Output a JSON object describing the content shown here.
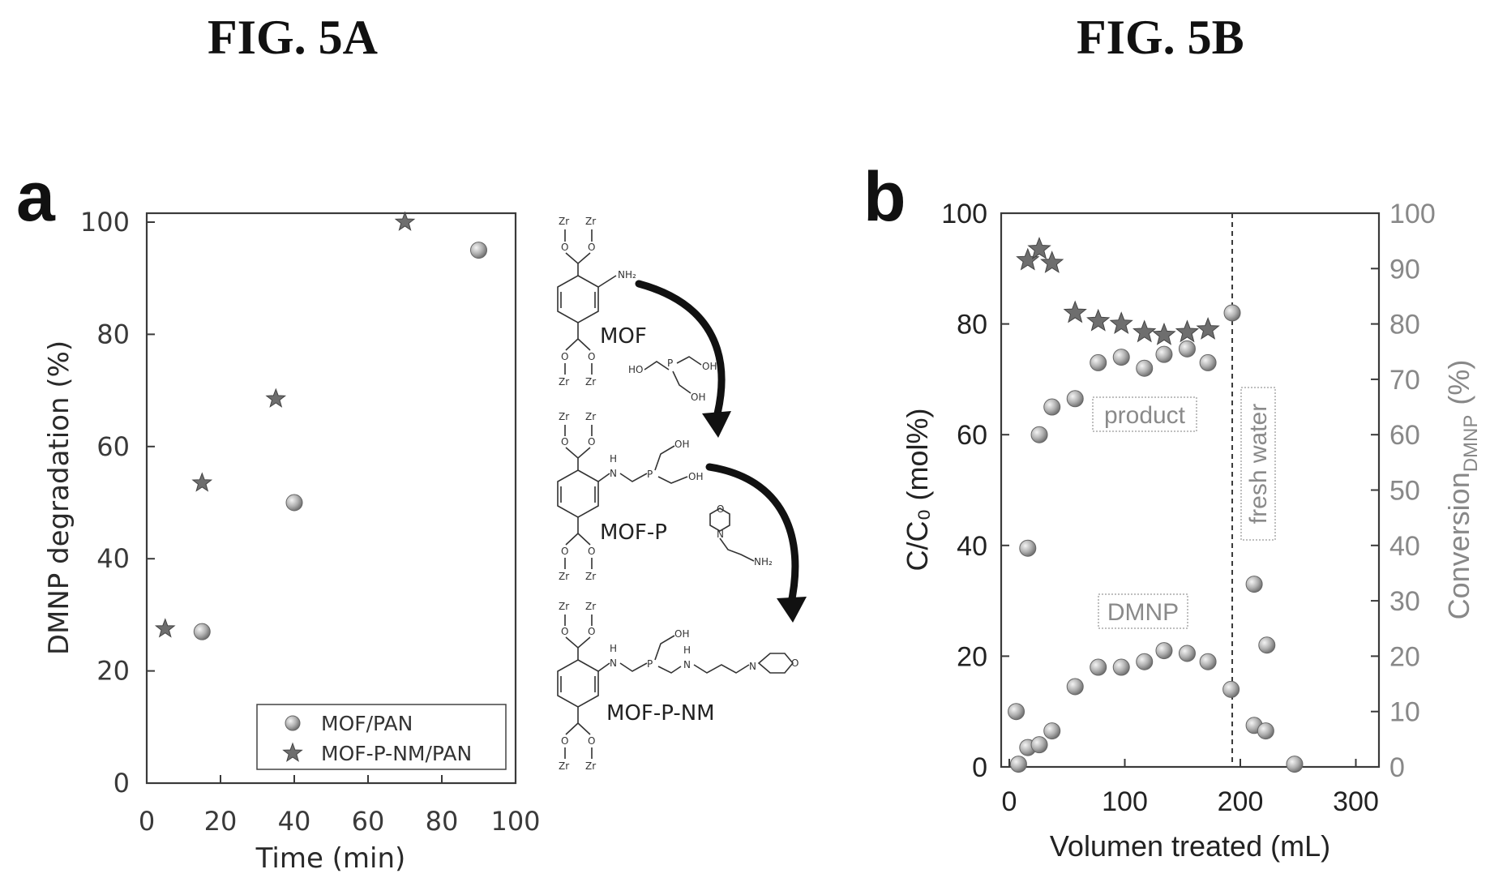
{
  "figure_titles": {
    "a": "FIG. 5A",
    "b": "FIG. 5B"
  },
  "panel_letters": {
    "a": "a",
    "b": "b"
  },
  "colors": {
    "circle_fill": "#a9a9a9",
    "star_fill": "#6e6e6e",
    "annotation": "#8a8a8a"
  },
  "chart_data": [
    {
      "type": "scatter",
      "xlabel": "Time (min)",
      "ylabel": "DMNP degradation (%)",
      "xlim": [
        0,
        100
      ],
      "ylim": [
        0,
        100
      ],
      "xticks": [
        "0",
        "20",
        "40",
        "60",
        "80",
        "100"
      ],
      "yticks": [
        "0",
        "20",
        "40",
        "60",
        "80",
        "100"
      ],
      "legend_position": "bottom-right",
      "series": [
        {
          "name": "MOF/PAN",
          "marker": "circle",
          "x": [
            15,
            40,
            90
          ],
          "y": [
            27,
            50,
            95
          ]
        },
        {
          "name": "MOF-P-NM/PAN",
          "marker": "star",
          "x": [
            5,
            15,
            35,
            70
          ],
          "y": [
            27.5,
            53.5,
            68.5,
            100
          ]
        }
      ],
      "scheme_labels": [
        "MOF",
        "MOF-P",
        "MOF-P-NM"
      ],
      "scheme_atoms": [
        "Zr",
        "O",
        "NH₂",
        "H",
        "N",
        "P",
        "OH",
        "HO",
        "NH₂"
      ]
    },
    {
      "type": "scatter",
      "xlabel": "Volumen treated (mL)",
      "ylabel": "C/C₀ (mol%)",
      "ylabel_right": "Conversion",
      "ylabel_right_sub": "DMNP",
      "ylabel_right_unit": "(%)",
      "xlim": [
        0,
        320
      ],
      "ylim": [
        0,
        100
      ],
      "ylim_right": [
        0,
        100
      ],
      "xticks": [
        "0",
        "100",
        "200",
        "300"
      ],
      "yticks": [
        "0",
        "20",
        "40",
        "60",
        "80",
        "100"
      ],
      "yticks_right": [
        "0",
        "10",
        "20",
        "30",
        "40",
        "50",
        "60",
        "70",
        "80",
        "90",
        "100"
      ],
      "vline_x": 193,
      "annotations": [
        "product",
        "DMNP",
        "fresh water"
      ],
      "series": [
        {
          "marker": "circle",
          "role": "product",
          "x": [
            16,
            26,
            37,
            57,
            77,
            97,
            117,
            134,
            154,
            172,
            212,
            223,
            247
          ],
          "y": [
            39.5,
            60,
            65,
            66.5,
            73,
            74,
            72,
            74.5,
            75.5,
            73,
            33,
            22,
            0.5
          ]
        },
        {
          "marker": "circle",
          "role": "DMNP",
          "x": [
            6,
            8,
            16,
            26,
            37,
            57,
            77,
            97,
            117,
            134,
            154,
            172,
            192,
            212,
            222
          ],
          "y": [
            10,
            0.5,
            3.5,
            4,
            6.5,
            14.5,
            18,
            18,
            19,
            21,
            20.5,
            19,
            14,
            7.5,
            6.5
          ]
        },
        {
          "marker": "star",
          "role": "conversion",
          "x": [
            16,
            26,
            37,
            57,
            77,
            97,
            117,
            134,
            154,
            172
          ],
          "y": [
            91.5,
            93.5,
            91,
            82,
            80.5,
            80,
            78.5,
            78,
            78.5,
            79
          ]
        },
        {
          "marker": "circle",
          "role": "fresh-water-point",
          "x": [
            193
          ],
          "y": [
            82
          ]
        }
      ]
    }
  ]
}
